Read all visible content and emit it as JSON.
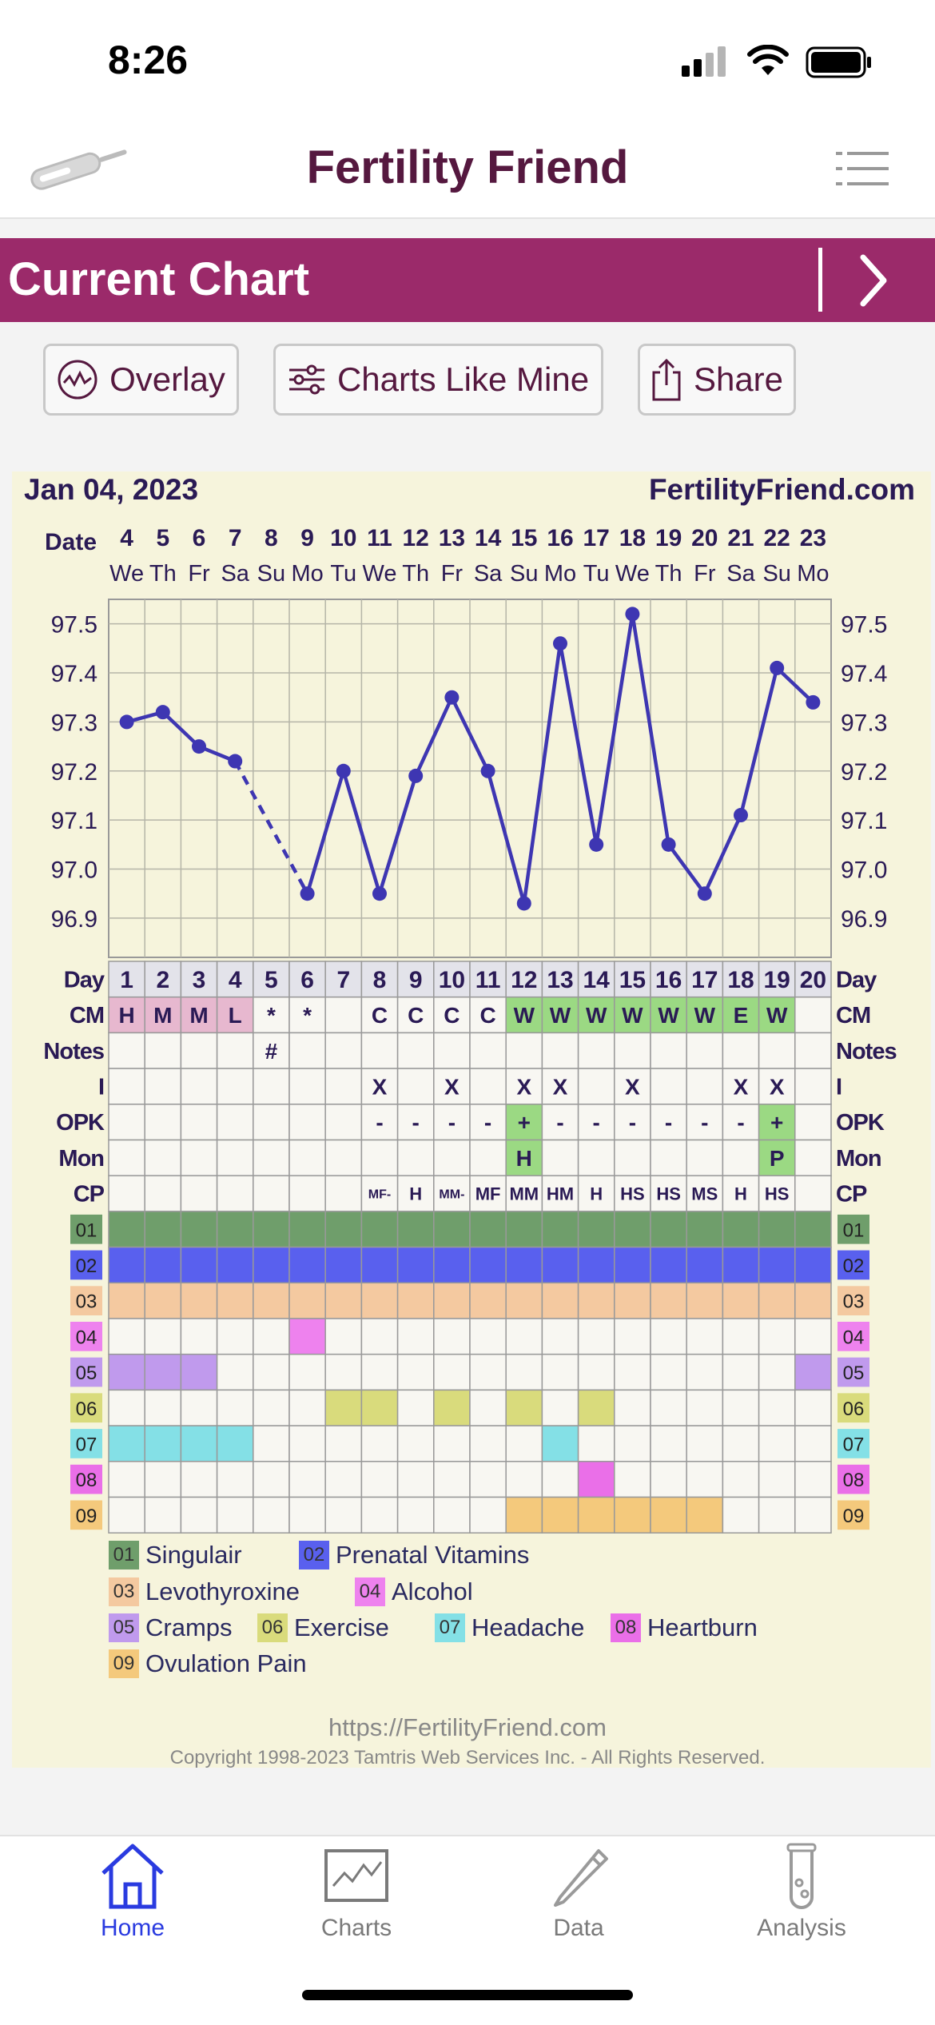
{
  "status_bar": {
    "time": "8:26"
  },
  "header": {
    "title": "Fertility Friend",
    "thermometer_icon": "thermometer-icon",
    "menu_icon": "hamburger-menu-icon"
  },
  "banner": {
    "title": "Current Chart",
    "next_icon": "chevron-right-icon"
  },
  "actions": [
    {
      "label": "Overlay",
      "icon": "overlay-chart-icon"
    },
    {
      "label": "Charts Like Mine",
      "icon": "sliders-icon"
    },
    {
      "label": "Share",
      "icon": "share-icon"
    }
  ],
  "chart": {
    "start_date": "Jan 04, 2023",
    "site": "FertilityFriend.com",
    "row_labels": {
      "date": "Date",
      "day": "Day",
      "cm": "CM",
      "notes": "Notes",
      "i": "I",
      "opk": "OPK",
      "mon": "Mon",
      "cp": "CP"
    },
    "dates": [
      "4",
      "5",
      "6",
      "7",
      "8",
      "9",
      "10",
      "11",
      "12",
      "13",
      "14",
      "15",
      "16",
      "17",
      "18",
      "19",
      "20",
      "21",
      "22",
      "23"
    ],
    "weekdays": [
      "We",
      "Th",
      "Fr",
      "Sa",
      "Su",
      "Mo",
      "Tu",
      "We",
      "Th",
      "Fr",
      "Sa",
      "Su",
      "Mo",
      "Tu",
      "We",
      "Th",
      "Fr",
      "Sa",
      "Su",
      "Mo"
    ],
    "cycle_days": [
      "1",
      "2",
      "3",
      "4",
      "5",
      "6",
      "7",
      "8",
      "9",
      "10",
      "11",
      "12",
      "13",
      "14",
      "15",
      "16",
      "17",
      "18",
      "19",
      "20"
    ],
    "cm": [
      "H",
      "M",
      "M",
      "L",
      "*",
      "*",
      "",
      "C",
      "C",
      "C",
      "C",
      "W",
      "W",
      "W",
      "W",
      "W",
      "W",
      "E",
      "W",
      ""
    ],
    "notes": [
      "",
      "",
      "",
      "",
      "#",
      "",
      "",
      "",
      "",
      "",
      "",
      "",
      "",
      "",
      "",
      "",
      "",
      "",
      "",
      ""
    ],
    "intercourse": [
      "",
      "",
      "",
      "",
      "",
      "",
      "",
      "X",
      "",
      "X",
      "",
      "X",
      "X",
      "",
      "X",
      "",
      "",
      "X",
      "X",
      ""
    ],
    "opk": [
      "",
      "",
      "",
      "",
      "",
      "",
      "",
      "-",
      "-",
      "-",
      "-",
      "+",
      "-",
      "-",
      "-",
      "-",
      "-",
      "-",
      "+",
      ""
    ],
    "monitor": [
      "",
      "",
      "",
      "",
      "",
      "",
      "",
      "",
      "",
      "",
      "",
      "H",
      "",
      "",
      "",
      "",
      "",
      "",
      "P",
      ""
    ],
    "cp": [
      "",
      "",
      "",
      "",
      "",
      "",
      "",
      "MF-",
      "H",
      "MM-",
      "MF",
      "MM",
      "HM",
      "H",
      "HS",
      "HS",
      "MS",
      "H",
      "HS",
      ""
    ],
    "colors": {
      "temp_line": "#3e36b2",
      "cm_menses": "#e7b8cf",
      "cm_egg_white": "#9bd983",
      "opk_positive": "#9bd983",
      "banner": "#9b2a6a",
      "title": "#55183f"
    },
    "chart_data": {
      "type": "line",
      "x": [
        "4",
        "5",
        "6",
        "7",
        "8",
        "9",
        "10",
        "11",
        "12",
        "13",
        "14",
        "15",
        "16",
        "17",
        "18",
        "19",
        "20",
        "21",
        "22",
        "23"
      ],
      "series": [
        {
          "values": [
            97.3,
            97.32,
            97.25,
            97.22,
            null,
            96.95,
            97.2,
            96.95,
            97.19,
            97.35,
            97.2,
            96.93,
            97.46,
            97.05,
            97.52,
            97.05,
            96.95,
            97.11,
            97.41,
            97.34
          ]
        }
      ],
      "gap_bridge": {
        "from": "7",
        "to": "9",
        "style": "dashed"
      },
      "y_ticks": [
        "97.5",
        "97.4",
        "97.3",
        "97.2",
        "97.1",
        "97.0",
        "96.9"
      ],
      "ylim": [
        96.82,
        97.55
      ],
      "grid": true
    },
    "symptom_rows": [
      {
        "code": "01",
        "name": "Singulair",
        "color": "#6f9e6b",
        "days": [
          1,
          2,
          3,
          4,
          5,
          6,
          7,
          8,
          9,
          10,
          11,
          12,
          13,
          14,
          15,
          16,
          17,
          18,
          19,
          20
        ]
      },
      {
        "code": "02",
        "name": "Prenatal Vitamins",
        "color": "#5960ee",
        "days": [
          1,
          2,
          3,
          4,
          5,
          6,
          7,
          8,
          9,
          10,
          11,
          12,
          13,
          14,
          15,
          16,
          17,
          18,
          19,
          20
        ]
      },
      {
        "code": "03",
        "name": "Levothyroxine",
        "color": "#f4c9a0",
        "days": [
          1,
          2,
          3,
          4,
          5,
          6,
          7,
          8,
          9,
          10,
          11,
          12,
          13,
          14,
          15,
          16,
          17,
          18,
          19,
          20
        ]
      },
      {
        "code": "04",
        "name": "Alcohol",
        "color": "#ee82ee",
        "days": [
          6
        ]
      },
      {
        "code": "05",
        "name": "Cramps",
        "color": "#c09aed",
        "days": [
          1,
          2,
          3,
          20
        ]
      },
      {
        "code": "06",
        "name": "Exercise",
        "color": "#d9db7c",
        "days": [
          7,
          8,
          10,
          12,
          14
        ]
      },
      {
        "code": "07",
        "name": "Headache",
        "color": "#84e0e6",
        "days": [
          1,
          2,
          3,
          4,
          13
        ]
      },
      {
        "code": "08",
        "name": "Heartburn",
        "color": "#ea6fe8",
        "days": [
          14
        ]
      },
      {
        "code": "09",
        "name": "Ovulation Pain",
        "color": "#f4c97c",
        "days": [
          12,
          13,
          14,
          15,
          16,
          17
        ]
      }
    ],
    "footer_url": "https://FertilityFriend.com",
    "footer_copyright": "Copyright 1998-2023 Tamtris Web Services Inc. - All Rights Reserved."
  },
  "tabs": [
    {
      "label": "Home",
      "icon": "home-icon",
      "active": true
    },
    {
      "label": "Charts",
      "icon": "chart-icon",
      "active": false
    },
    {
      "label": "Data",
      "icon": "pencil-icon",
      "active": false
    },
    {
      "label": "Analysis",
      "icon": "test-tube-icon",
      "active": false
    }
  ]
}
